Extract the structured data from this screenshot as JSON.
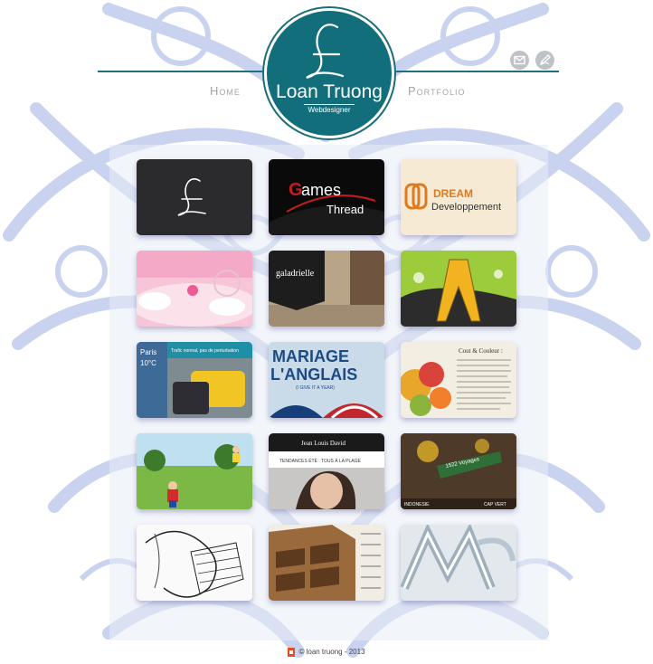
{
  "header": {
    "nav": [
      {
        "label": "Home"
      },
      {
        "label": "Portfolio"
      }
    ],
    "logo": {
      "monogram": "£",
      "name": "Loan Truong",
      "subtitle": "Webdesigner"
    },
    "social": [
      {
        "icon": "mail-icon"
      },
      {
        "icon": "pen-icon"
      }
    ]
  },
  "portfolio": {
    "items": [
      {
        "text": "£"
      },
      {
        "text": "Games Thread"
      },
      {
        "text": "DREAM Developpement"
      },
      {
        "text": ""
      },
      {
        "text": "galadrielle"
      },
      {
        "text": ""
      },
      {
        "text": "Paris 10°C",
        "caption": "Trafic normal, pas de perturbation"
      },
      {
        "text": "MARIAGE L'ANGLAIS",
        "caption": "(I GIVE IT A YEAR)"
      },
      {
        "text": "Cout & Couleur :"
      },
      {
        "text": ""
      },
      {
        "text": "Jean Louis David",
        "caption": "TENDANCES ÉTÉ : TOUS À LA PLAGE"
      },
      {
        "text": "1522 Voyages",
        "caption": "INDONESIE",
        "caption2": "CAP VERT"
      },
      {
        "text": ""
      },
      {
        "text": ""
      },
      {
        "text": ""
      }
    ]
  },
  "footer": {
    "copyright": "© loan truong - 2013"
  },
  "colors": {
    "brand": "#136e7b",
    "nav": "#a3a6aa",
    "ornament": "#c6d0ee"
  }
}
